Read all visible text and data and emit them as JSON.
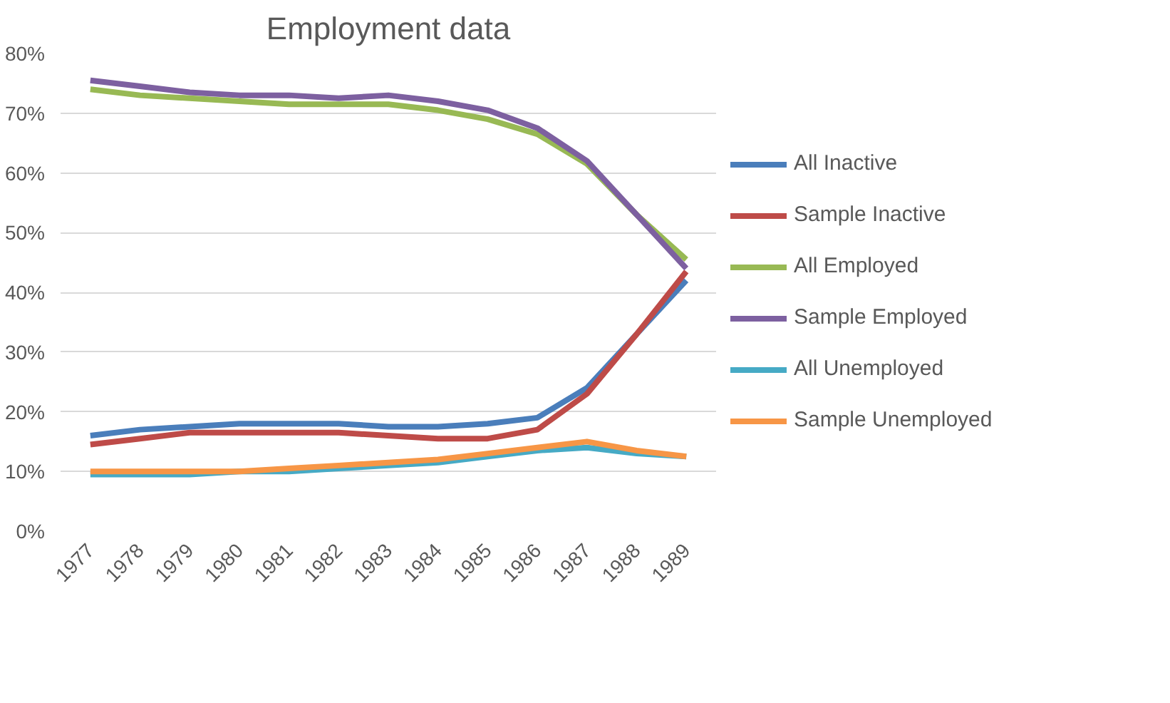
{
  "chart_data": {
    "type": "line",
    "title": "Employment data",
    "categories": [
      "1977",
      "1978",
      "1979",
      "1980",
      "1981",
      "1982",
      "1983",
      "1984",
      "1985",
      "1986",
      "1987",
      "1988",
      "1989"
    ],
    "series": [
      {
        "name": "All Inactive",
        "color": "#4a7ebb",
        "values": [
          16,
          17,
          17.5,
          18,
          18,
          18,
          17.5,
          17.5,
          18,
          19,
          24,
          33,
          42
        ]
      },
      {
        "name": "Sample Inactive",
        "color": "#be4b48",
        "values": [
          14.5,
          15.5,
          16.5,
          16.5,
          16.5,
          16.5,
          16,
          15.5,
          15.5,
          17,
          23,
          33,
          43.5
        ]
      },
      {
        "name": "All Employed",
        "color": "#98b954",
        "values": [
          74,
          73,
          72.5,
          72,
          71.5,
          71.5,
          71.5,
          70.5,
          69,
          66.5,
          61.5,
          53,
          45.5
        ]
      },
      {
        "name": "Sample Employed",
        "color": "#7d60a0",
        "values": [
          75.5,
          74.5,
          73.5,
          73,
          73,
          72.5,
          73,
          72,
          70.5,
          67.5,
          62,
          53,
          44
        ]
      },
      {
        "name": "All Unemployed",
        "color": "#46aac5",
        "values": [
          9.5,
          9.5,
          9.5,
          10,
          10,
          10.5,
          11,
          11.5,
          12.5,
          13.5,
          14,
          13,
          12.5
        ]
      },
      {
        "name": "Sample Unemployed",
        "color": "#f79646",
        "values": [
          10,
          10,
          10,
          10,
          10.5,
          11,
          11.5,
          12,
          13,
          14,
          15,
          13.5,
          12.5
        ]
      }
    ],
    "ylim": [
      0,
      80
    ],
    "yticks": [
      {
        "value": 0,
        "label": "0%"
      },
      {
        "value": 10,
        "label": "10%"
      },
      {
        "value": 20,
        "label": "20%"
      },
      {
        "value": 30,
        "label": "30%"
      },
      {
        "value": 40,
        "label": "40%"
      },
      {
        "value": 50,
        "label": "50%"
      },
      {
        "value": 60,
        "label": "60%"
      },
      {
        "value": 70,
        "label": "70%"
      },
      {
        "value": 80,
        "label": "80%"
      }
    ],
    "grid": "y",
    "legend": "right",
    "marker": "none",
    "line_style": "solid"
  }
}
